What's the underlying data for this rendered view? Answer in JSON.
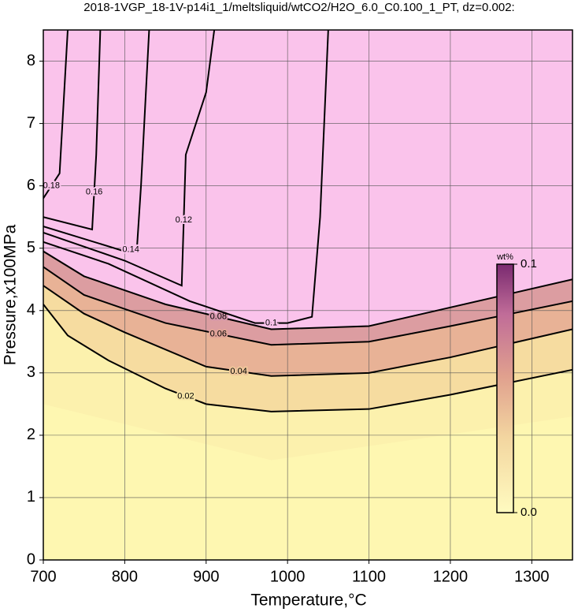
{
  "chart_data": {
    "type": "contour",
    "title": "2018-1VGP_18-1V-p14i1_1/meltsliquid/wtCO2/H2O_6.0_C0.100_1_PT, dz=0.002:",
    "xlabel": "Temperature,°C",
    "ylabel": "Pressure,x100MPa",
    "xlim": [
      700,
      1350
    ],
    "ylim": [
      0,
      8.5
    ],
    "xticks": [
      700,
      800,
      900,
      1000,
      1100,
      1200,
      1300
    ],
    "yticks": [
      0,
      1,
      2,
      3,
      4,
      5,
      6,
      7,
      8
    ],
    "grid": true,
    "colorbar": {
      "label": "wt%",
      "lim": [
        0,
        0.1
      ],
      "ticks": [
        {
          "value": 0,
          "label": "0.0"
        },
        0.1
      ]
    },
    "contours": [
      {
        "level": 0.02,
        "x": [
          700,
          730,
          780,
          850,
          900,
          980,
          1100,
          1200,
          1350
        ],
        "y": [
          4.1,
          3.6,
          3.2,
          2.75,
          2.5,
          2.38,
          2.42,
          2.65,
          3.05
        ]
      },
      {
        "level": 0.04,
        "x": [
          700,
          750,
          800,
          900,
          980,
          1100,
          1200,
          1350
        ],
        "y": [
          4.4,
          3.95,
          3.65,
          3.1,
          2.95,
          3.0,
          3.25,
          3.7
        ]
      },
      {
        "level": 0.06,
        "x": [
          700,
          750,
          850,
          980,
          1100,
          1200,
          1350
        ],
        "y": [
          4.7,
          4.25,
          3.8,
          3.45,
          3.5,
          3.75,
          4.15
        ]
      },
      {
        "level": 0.08,
        "x": [
          700,
          750,
          850,
          980,
          1100,
          1200,
          1350
        ],
        "y": [
          4.95,
          4.55,
          4.1,
          3.7,
          3.75,
          4.05,
          4.5
        ]
      },
      {
        "level": 0.1,
        "x": [
          700,
          780,
          880,
          960,
          1000,
          1030,
          1040,
          1050
        ],
        "y": [
          5.1,
          4.75,
          4.15,
          3.8,
          3.8,
          3.9,
          5.5,
          8.5
        ]
      },
      {
        "level": 0.12,
        "x": [
          700,
          800,
          870,
          875,
          900,
          910
        ],
        "y": [
          5.25,
          4.8,
          4.4,
          6.5,
          7.5,
          8.5
        ]
      },
      {
        "level": 0.14,
        "x": [
          700,
          800,
          815,
          820,
          830
        ],
        "y": [
          5.35,
          4.95,
          5.0,
          6.0,
          8.5
        ]
      },
      {
        "level": 0.16,
        "x": [
          700,
          760,
          765,
          770
        ],
        "y": [
          5.5,
          5.3,
          6.5,
          8.5
        ]
      },
      {
        "level": 0.18,
        "x": [
          700,
          720,
          730
        ],
        "y": [
          5.8,
          6.2,
          8.5
        ]
      }
    ]
  }
}
